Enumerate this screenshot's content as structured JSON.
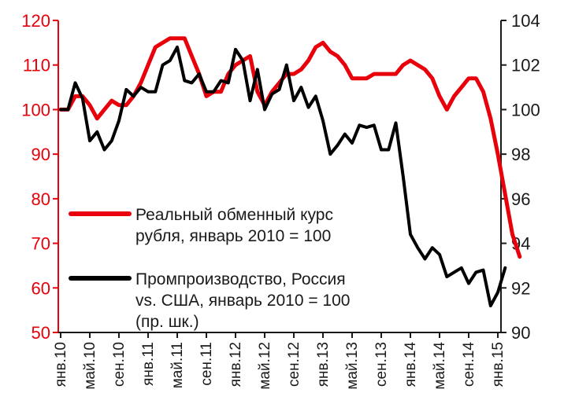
{
  "chart_data": {
    "type": "line",
    "title": "",
    "xlabel": "",
    "ylabel_left": "",
    "ylabel_right": "",
    "x_tick_labels": [
      "янв.10",
      "май.10",
      "сен.10",
      "янв.11",
      "май.11",
      "сен.11",
      "янв.12",
      "май.12",
      "сен.12",
      "янв.13",
      "май.13",
      "сен.13",
      "янв.14",
      "май.14",
      "сен.14",
      "янв.15"
    ],
    "x_start": "2010-01",
    "y_left": {
      "min": 50,
      "max": 120,
      "step": 10,
      "color": "#e8000b"
    },
    "y_right": {
      "min": 90,
      "max": 104,
      "step": 2,
      "color": "#1a1a1a"
    },
    "grid": false,
    "legend_position": "center-left",
    "series": [
      {
        "name": "Реальный обменный курс рубля, январь 2010 = 100",
        "legend_lines": [
          "Реальный обменный курс",
          "рубля, январь 2010 = 100"
        ],
        "axis": "left",
        "color": "#e8000b",
        "values": [
          100,
          100,
          103,
          103,
          101,
          98,
          100,
          102,
          101,
          101,
          103,
          106,
          110,
          114,
          115,
          116,
          116,
          116,
          112,
          108,
          103,
          104,
          104,
          108,
          110,
          111,
          112,
          104,
          101,
          104,
          106,
          108,
          108,
          109,
          111,
          114,
          115,
          113,
          112,
          110,
          107,
          107,
          107,
          108,
          108,
          108,
          108,
          110,
          111,
          110,
          109,
          107,
          103,
          100,
          103,
          105,
          107,
          107,
          104,
          98,
          90,
          81,
          72,
          67
        ]
      },
      {
        "name": "Промпроизводство, Россия vs. США, январь 2010 = 100",
        "legend_lines": [
          "Промпроизводство, Россия",
          "vs. США, январь 2010 = 100",
          "(пр. шк.)"
        ],
        "axis": "right",
        "color": "#000000",
        "values": [
          100,
          100,
          101.2,
          100.5,
          98.6,
          99.0,
          98.2,
          98.6,
          99.5,
          100.9,
          100.6,
          101.0,
          100.8,
          100.8,
          102.0,
          102.2,
          102.8,
          101.3,
          101.2,
          101.6,
          100.8,
          100.8,
          101.3,
          101.2,
          102.7,
          102.2,
          100.4,
          101.8,
          100.0,
          100.7,
          100.9,
          102.0,
          100.4,
          101.0,
          100.1,
          100.6,
          99.5,
          98.0,
          98.4,
          98.9,
          98.5,
          99.3,
          99.2,
          99.3,
          98.2,
          98.2,
          99.4,
          97.0,
          94.4,
          93.8,
          93.3,
          93.8,
          93.5,
          92.5,
          92.7,
          92.9,
          92.2,
          92.7,
          92.8,
          91.2,
          91.8,
          92.9
        ]
      }
    ]
  }
}
